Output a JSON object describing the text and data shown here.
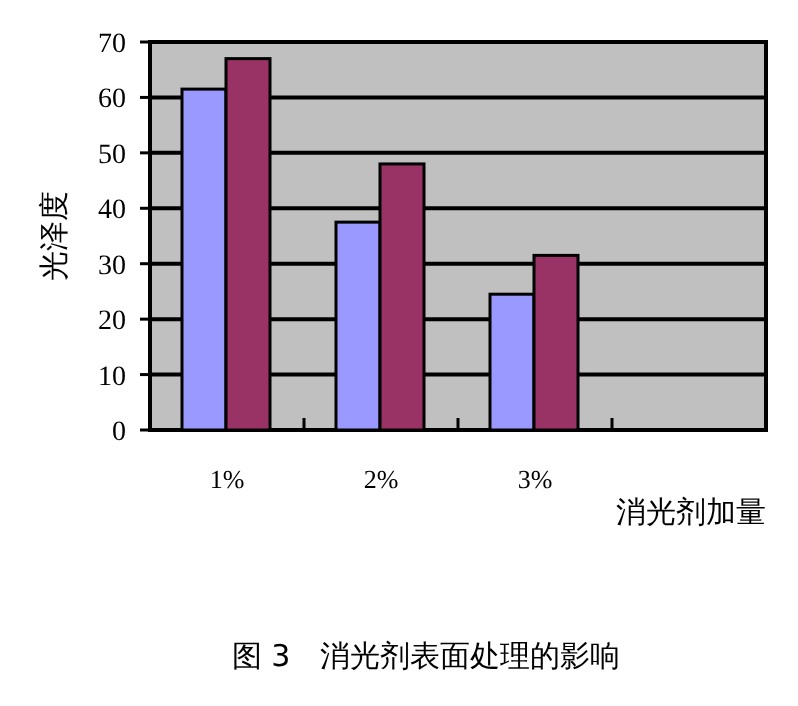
{
  "chart_data": {
    "type": "bar",
    "title": "图 3　消光剂表面处理的影响",
    "xlabel": "消光剂加量",
    "ylabel": "光泽度",
    "categories": [
      "1%",
      "2%",
      "3%",
      null
    ],
    "series": [
      {
        "color": "#9999ff",
        "values": [
          61.5,
          37.5,
          24.5,
          null
        ]
      },
      {
        "color": "#993366",
        "values": [
          67,
          48,
          31.5,
          null
        ]
      }
    ],
    "ylim": [
      0,
      70
    ],
    "yticks": [
      0,
      10,
      20,
      30,
      40,
      50,
      60,
      70
    ],
    "grid": "y"
  }
}
